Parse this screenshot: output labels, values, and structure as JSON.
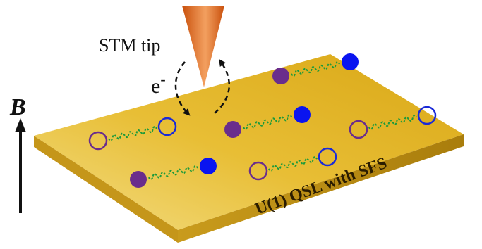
{
  "labels": {
    "tip": "STM tip",
    "electron": "e",
    "electron_sup": "-",
    "field": "B",
    "surface": "U(1) QSL with SFS"
  },
  "colors": {
    "slab_top_light": "#f2d36a",
    "slab_top_dark": "#d9a81a",
    "slab_front": "#b98c12",
    "slab_side": "#9d740c",
    "tip_light": "#f6b36a",
    "tip_dark": "#c9540e",
    "filled_left": "#6a2d8c",
    "filled_right": "#0a14f0",
    "open_left": "#6a2d8c",
    "open_right": "#1a2ad8",
    "spring": "#1e9a3a",
    "arrow": "#111111"
  },
  "pairs": [
    {
      "kind": "filled"
    },
    {
      "kind": "filled"
    },
    {
      "kind": "filled"
    },
    {
      "kind": "open"
    },
    {
      "kind": "open"
    },
    {
      "kind": "open"
    }
  ]
}
